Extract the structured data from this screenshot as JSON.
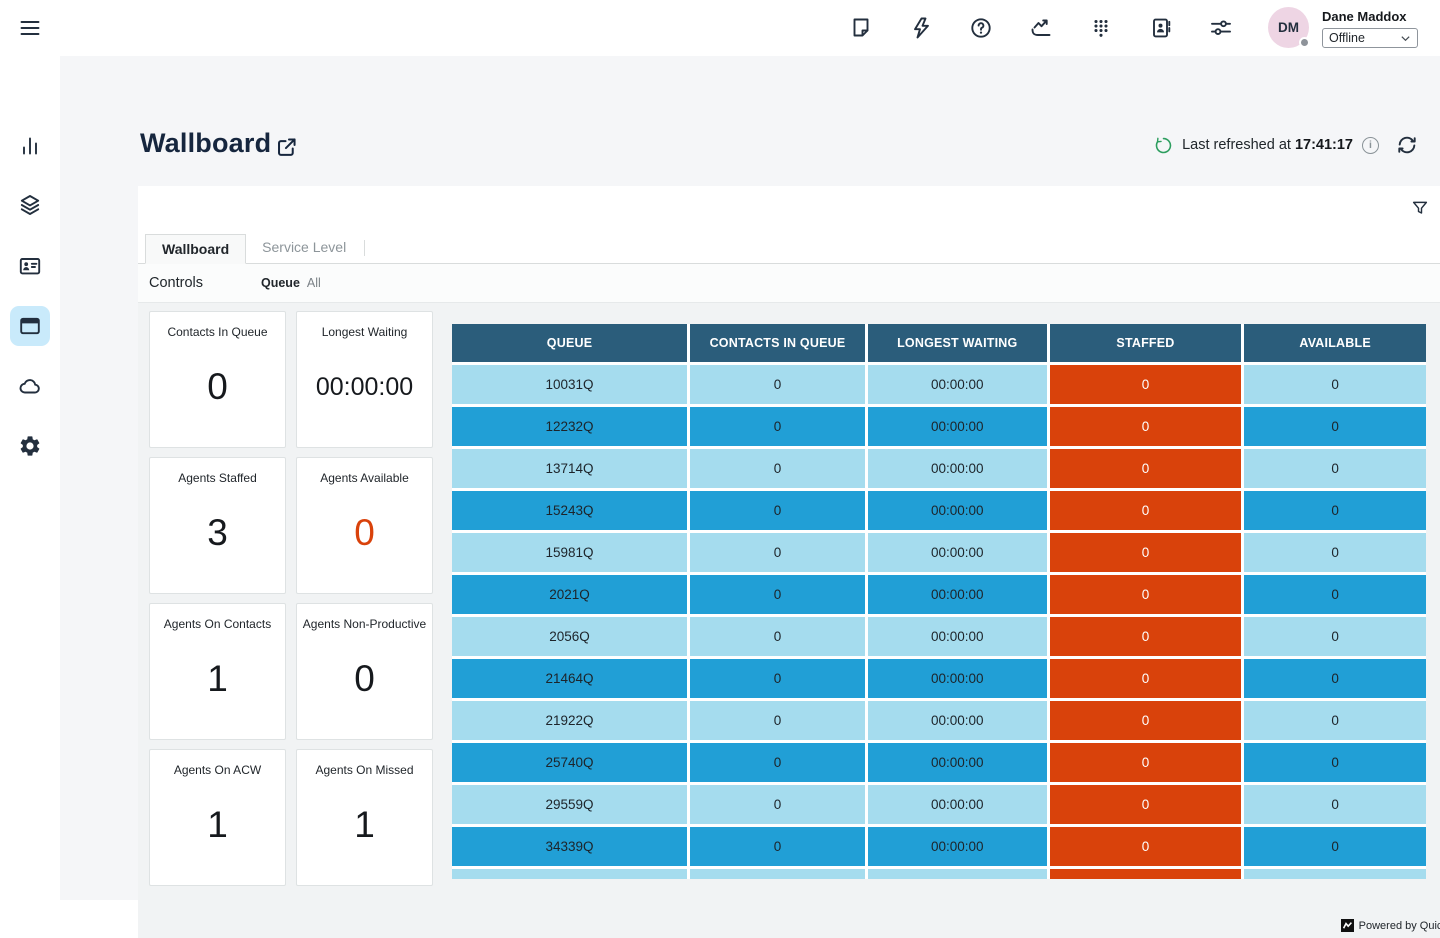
{
  "topbar": {
    "icons": [
      "note-icon",
      "lightning-icon",
      "help-icon",
      "metrics-icon",
      "dialpad-icon",
      "contacts-icon",
      "sliders-icon"
    ],
    "user": {
      "name": "Dane Maddox",
      "initials": "DM",
      "status_value": "Offline",
      "status_options": [
        "Offline"
      ]
    }
  },
  "sidebar": {
    "items": [
      "analytics",
      "layers",
      "agent-card",
      "wallboard-window",
      "cloud",
      "settings"
    ],
    "active_item": "wallboard-window"
  },
  "page": {
    "title": "Wallboard",
    "refresh_label": "Last refreshed at",
    "refresh_time": "17:41:17"
  },
  "dashboard": {
    "tabs": [
      {
        "label": "Wallboard",
        "active": true
      },
      {
        "label": "Service Level",
        "active": false
      }
    ],
    "controls": {
      "title": "Controls",
      "param_label": "Queue",
      "param_value": "All"
    },
    "kpis": [
      {
        "title": "Contacts In Queue",
        "value": "0",
        "highlight": false
      },
      {
        "title": "Longest Waiting",
        "value": "00:00:00",
        "highlight": false
      },
      {
        "title": "Agents Staffed",
        "value": "3",
        "highlight": false
      },
      {
        "title": "Agents Available",
        "value": "0",
        "highlight": true
      },
      {
        "title": "Agents On Contacts",
        "value": "1",
        "highlight": false
      },
      {
        "title": "Agents Non-Productive",
        "value": "0",
        "highlight": false
      },
      {
        "title": "Agents On ACW",
        "value": "1",
        "highlight": false
      },
      {
        "title": "Agents On Missed",
        "value": "1",
        "highlight": false
      }
    ],
    "table": {
      "columns": [
        "QUEUE",
        "CONTACTS IN QUEUE",
        "LONGEST WAITING",
        "STAFFED",
        "AVAILABLE"
      ],
      "rows": [
        [
          "10031Q",
          "0",
          "00:00:00",
          "0",
          "0"
        ],
        [
          "12232Q",
          "0",
          "00:00:00",
          "0",
          "0"
        ],
        [
          "13714Q",
          "0",
          "00:00:00",
          "0",
          "0"
        ],
        [
          "15243Q",
          "0",
          "00:00:00",
          "0",
          "0"
        ],
        [
          "15981Q",
          "0",
          "00:00:00",
          "0",
          "0"
        ],
        [
          "2021Q",
          "0",
          "00:00:00",
          "0",
          "0"
        ],
        [
          "2056Q",
          "0",
          "00:00:00",
          "0",
          "0"
        ],
        [
          "21464Q",
          "0",
          "00:00:00",
          "0",
          "0"
        ],
        [
          "21922Q",
          "0",
          "00:00:00",
          "0",
          "0"
        ],
        [
          "25740Q",
          "0",
          "00:00:00",
          "0",
          "0"
        ],
        [
          "29559Q",
          "0",
          "00:00:00",
          "0",
          "0"
        ],
        [
          "34339Q",
          "0",
          "00:00:00",
          "0",
          "0"
        ]
      ],
      "has_partial_row": true
    },
    "footer": "Powered by QuickSight"
  },
  "colors": {
    "table_header": "#2b5d7b",
    "row_light": "#a5dcee",
    "row_mid": "#219fd6",
    "staffed_cell": "#d9420b",
    "cell_text_dark": "#1d242a",
    "cell_text_light": "#ffffff",
    "kpi_highlight": "#d9420b",
    "refresh_green": "#2d9e5f",
    "avatar_bg": "#eed5e4",
    "active_nav_bg": "#c9eafb"
  }
}
